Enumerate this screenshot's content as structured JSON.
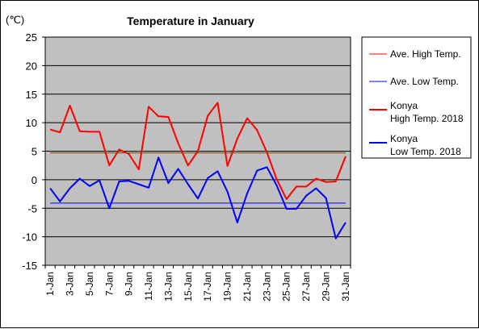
{
  "chart_data": {
    "type": "line",
    "title": "Temperature in January",
    "ylabel": "(℃)",
    "xlabel": "",
    "ylim": [
      -15,
      25
    ],
    "yticks": [
      25,
      20,
      15,
      10,
      5,
      0,
      -5,
      -10,
      -15
    ],
    "categories": [
      "1-Jan",
      "2-Jan",
      "3-Jan",
      "4-Jan",
      "5-Jan",
      "6-Jan",
      "7-Jan",
      "8-Jan",
      "9-Jan",
      "10-Jan",
      "11-Jan",
      "12-Jan",
      "13-Jan",
      "14-Jan",
      "15-Jan",
      "16-Jan",
      "17-Jan",
      "18-Jan",
      "19-Jan",
      "20-Jan",
      "21-Jan",
      "22-Jan",
      "23-Jan",
      "24-Jan",
      "25-Jan",
      "26-Jan",
      "27-Jan",
      "28-Jan",
      "29-Jan",
      "30-Jan",
      "31-Jan"
    ],
    "xtick_labels": [
      "1-Jan",
      "3-Jan",
      "5-Jan",
      "7-Jan",
      "9-Jan",
      "11-Jan",
      "13-Jan",
      "15-Jan",
      "17-Jan",
      "19-Jan",
      "21-Jan",
      "23-Jan",
      "25-Jan",
      "27-Jan",
      "29-Jan",
      "31-Jan"
    ],
    "grid": true,
    "legend_position": "right",
    "plot_background": "#c0c0c0",
    "series": [
      {
        "name": "Ave. High Temp.",
        "color": "#ff0000",
        "kind": "average",
        "values": [
          4.7,
          4.7,
          4.7,
          4.7,
          4.7,
          4.7,
          4.7,
          4.7,
          4.7,
          4.7,
          4.7,
          4.7,
          4.7,
          4.7,
          4.7,
          4.7,
          4.7,
          4.7,
          4.7,
          4.7,
          4.7,
          4.7,
          4.7,
          4.7,
          4.7,
          4.7,
          4.7,
          4.7,
          4.7,
          4.7,
          4.7
        ]
      },
      {
        "name": "Ave. Low Temp.",
        "color": "#0000ff",
        "kind": "average",
        "values": [
          -4.1,
          -4.1,
          -4.1,
          -4.1,
          -4.1,
          -4.1,
          -4.1,
          -4.1,
          -4.1,
          -4.1,
          -4.1,
          -4.1,
          -4.1,
          -4.1,
          -4.1,
          -4.1,
          -4.1,
          -4.1,
          -4.1,
          -4.1,
          -4.1,
          -4.1,
          -4.1,
          -4.1,
          -4.1,
          -4.1,
          -4.1,
          -4.1,
          -4.1,
          -4.1,
          -4.1
        ]
      },
      {
        "name": "Konya\nHigh Temp. 2018",
        "color": "#ff0000",
        "kind": "daily",
        "values": [
          8.8,
          8.3,
          13.0,
          8.5,
          8.4,
          8.4,
          2.5,
          5.3,
          4.5,
          1.8,
          12.8,
          11.1,
          11.0,
          6.4,
          2.5,
          5.0,
          11.2,
          13.5,
          2.4,
          7.2,
          10.8,
          8.7,
          4.8,
          0.1,
          -3.4,
          -1.2,
          -1.2,
          0.2,
          -0.4,
          -0.3,
          4.1
        ]
      },
      {
        "name": "Konya\nLow Temp. 2018",
        "color": "#0000ff",
        "kind": "daily",
        "values": [
          -1.5,
          -3.8,
          -1.5,
          0.2,
          -1.1,
          -0.1,
          -5.0,
          -0.3,
          -0.2,
          -0.8,
          -1.4,
          3.9,
          -0.6,
          1.9,
          -0.8,
          -3.3,
          0.3,
          1.5,
          -2.1,
          -7.5,
          -2.4,
          1.6,
          2.2,
          -1.0,
          -5.1,
          -5.1,
          -2.8,
          -1.5,
          -3.2,
          -10.3,
          -7.5
        ]
      }
    ]
  }
}
